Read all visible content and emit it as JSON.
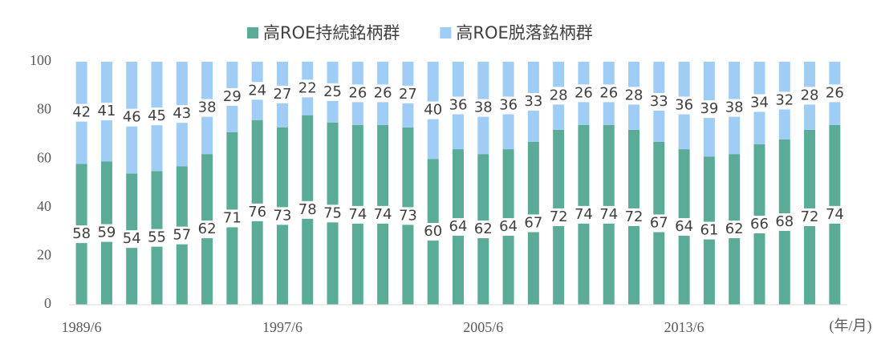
{
  "chart_data": {
    "type": "stacked_bar",
    "categories": [
      "1989/6",
      null,
      null,
      null,
      null,
      null,
      null,
      null,
      "1997/6",
      null,
      null,
      null,
      null,
      null,
      null,
      null,
      "2005/6",
      null,
      null,
      null,
      null,
      null,
      null,
      null,
      "2013/6",
      null,
      null,
      null,
      null,
      null,
      null
    ],
    "series": [
      {
        "name": "高ROE持続銘柄群",
        "color": "#5aab98",
        "values": [
          58,
          59,
          54,
          55,
          57,
          62,
          71,
          76,
          73,
          78,
          75,
          74,
          74,
          73,
          60,
          64,
          62,
          64,
          67,
          72,
          74,
          74,
          72,
          67,
          64,
          61,
          62,
          66,
          68,
          72,
          74
        ]
      },
      {
        "name": "高ROE脱落銘柄群",
        "color": "#9fcdf5",
        "values": [
          42,
          41,
          46,
          45,
          43,
          38,
          29,
          24,
          27,
          22,
          25,
          26,
          26,
          27,
          40,
          36,
          38,
          36,
          33,
          28,
          26,
          26,
          28,
          33,
          36,
          39,
          38,
          34,
          32,
          28,
          26
        ]
      }
    ],
    "ylim": [
      0,
      100
    ],
    "yticks": [
      0,
      20,
      40,
      60,
      80,
      100
    ],
    "xlabel": "(年/月)",
    "legend": "top"
  }
}
